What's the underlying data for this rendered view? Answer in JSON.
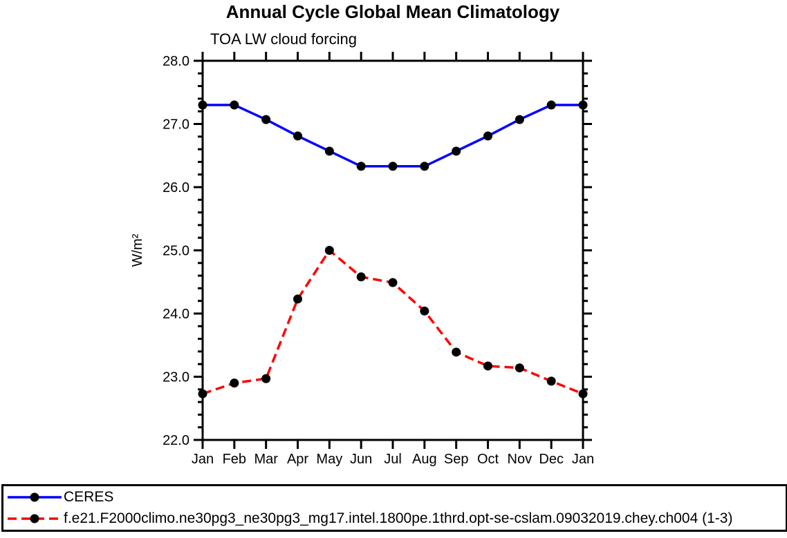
{
  "title": "Annual Cycle Global Mean Climatology",
  "subtitle": "TOA LW cloud forcing",
  "chart_data": {
    "type": "line",
    "title": "Annual Cycle Global Mean Climatology",
    "subtitle": "TOA LW cloud forcing",
    "ylabel": "W/m²",
    "xlabel": "",
    "categories": [
      "Jan",
      "Feb",
      "Mar",
      "Apr",
      "May",
      "Jun",
      "Jul",
      "Aug",
      "Sep",
      "Oct",
      "Nov",
      "Dec",
      "Jan"
    ],
    "series": [
      {
        "name": "CERES",
        "color": "#0000ff",
        "line_style": "solid",
        "marker": "circle",
        "marker_color": "#000000",
        "values": [
          27.3,
          27.3,
          27.07,
          26.81,
          26.57,
          26.33,
          26.33,
          26.33,
          26.57,
          26.81,
          27.07,
          27.3,
          27.3
        ]
      },
      {
        "name": "f.e21.F2000climo.ne30pg3_ne30pg3_mg17.intel.1800pe.1thrd.opt-se-cslam.09032019.chey.ch004 (1-3)",
        "color": "#ff0000",
        "line_style": "dashed",
        "marker": "circle",
        "marker_color": "#000000",
        "values": [
          22.73,
          22.9,
          22.97,
          24.23,
          25.0,
          24.58,
          24.49,
          24.04,
          23.39,
          23.17,
          23.14,
          22.93,
          22.73
        ]
      }
    ],
    "ylim": [
      22.0,
      28.0
    ],
    "y_major_step": 1.0,
    "y_minor_step": 0.2,
    "y_tick_labels": [
      "22.0",
      "23.0",
      "24.0",
      "25.0",
      "26.0",
      "27.0",
      "28.0"
    ],
    "grid": false,
    "legend_position": "bottom"
  }
}
